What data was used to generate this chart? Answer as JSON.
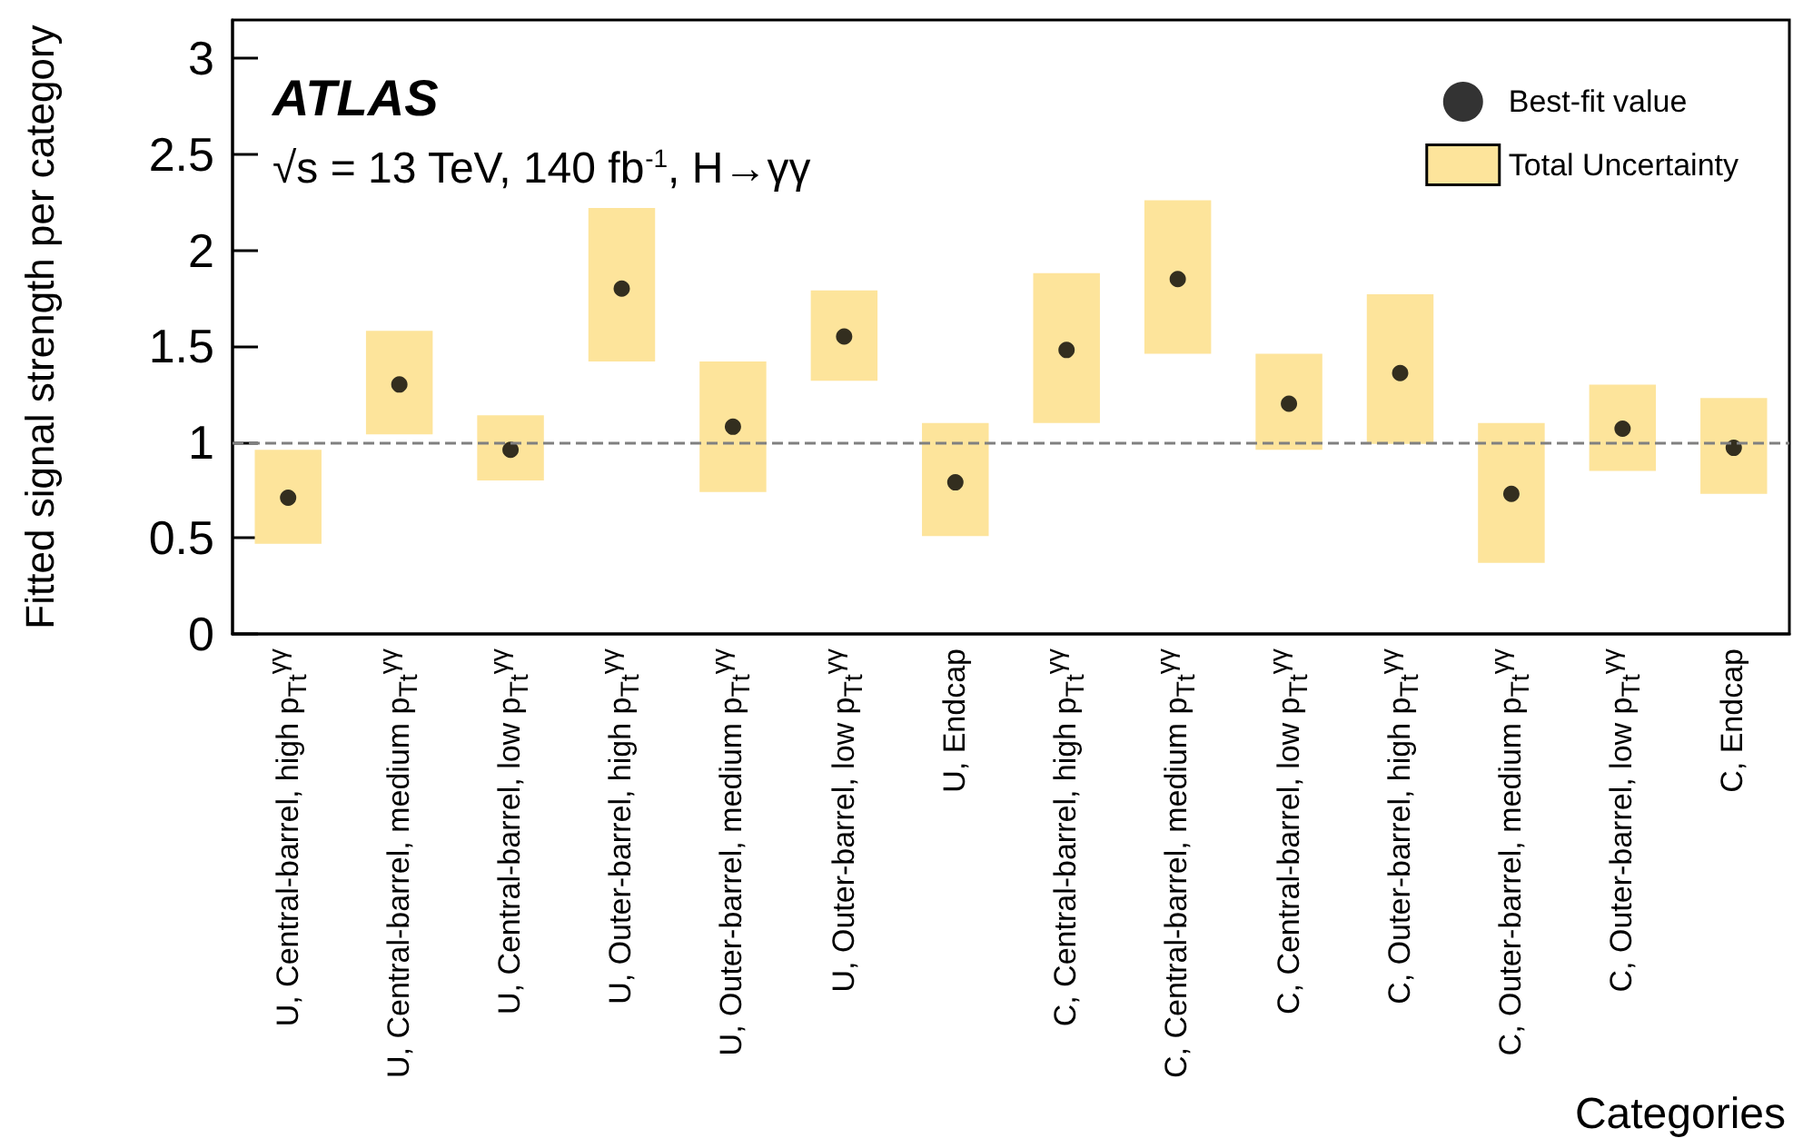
{
  "chart_data": {
    "type": "bar",
    "xlabel": "Categories",
    "ylabel": "Fitted signal strength per category",
    "annotations": [
      "ATLAS",
      "√s = 13 TeV, 140 fb$^{-1}$, H→γγ"
    ],
    "categories": [
      "U, Central-barrel, high p$_{Tt}$$^{γγ}$",
      "U, Central-barrel, medium p$_{Tt}$$^{γγ}$",
      "U, Central-barrel, low p$_{Tt}$$^{γγ}$",
      "U, Outer-barrel, high p$_{Tt}$$^{γγ}$",
      "U, Outer-barrel, medium p$_{Tt}$$^{γγ}$",
      "U, Outer-barrel, low p$_{Tt}$$^{γγ}$",
      "U, Endcap",
      "C, Central-barrel, high p$_{Tt}$$^{γγ}$",
      "C, Central-barrel, medium p$_{Tt}$$^{γγ}$",
      "C, Central-barrel, low p$_{Tt}$$^{γγ}$",
      "C, Outer-barrel, high p$_{Tt}$$^{γγ}$",
      "C, Outer-barrel, medium p$_{Tt}$$^{γγ}$",
      "C, Outer-barrel, low p$_{Tt}$$^{γγ}$",
      "C, Endcap"
    ],
    "series": [
      {
        "type": "scatter",
        "name": "Best-fit value",
        "color": "#000000",
        "x": [
          "U, Central-barrel, high p$_{Tt}$$^{γγ}$",
          "U, Central-barrel, medium p$_{Tt}$$^{γγ}$",
          "U, Central-barrel, low p$_{Tt}$$^{γγ}$",
          "U, Outer-barrel, high p$_{Tt}$$^{γγ}$",
          "U, Outer-barrel, medium p$_{Tt}$$^{γγ}$",
          "U, Outer-barrel, low p$_{Tt}$$^{γγ}$",
          "U, Endcap",
          "C, Central-barrel, high p$_{Tt}$$^{γγ}$",
          "C, Central-barrel, medium p$_{Tt}$$^{γγ}$",
          "C, Central-barrel, low p$_{Tt}$$^{γγ}$",
          "C, Outer-barrel, high p$_{Tt}$$^{γγ}$",
          "C, Outer-barrel, medium p$_{Tt}$$^{γγ}$",
          "C, Outer-barrel, low p$_{Tt}$$^{γγ}$",
          "C, Endcap"
        ],
        "values": [
          0.71,
          1.3,
          0.96,
          1.8,
          1.08,
          1.55,
          0.79,
          1.48,
          1.85,
          1.2,
          1.36,
          0.73,
          1.07,
          0.97
        ]
      },
      {
        "name": "Total Uncertainty",
        "color": "#fde49b",
        "base": [
          0.47,
          1.04,
          0.8,
          1.42,
          0.74,
          1.32,
          0.51,
          1.1,
          1.46,
          0.96,
          0.99,
          0.37,
          0.85,
          0.73
        ],
        "values": [
          0.49,
          0.54,
          0.34,
          0.8,
          0.68,
          0.47,
          0.59,
          0.78,
          0.8,
          0.5,
          0.78,
          0.73,
          0.45,
          0.5
        ]
      }
    ],
    "ylim": [
      0,
      3.2
    ],
    "yticks": [
      0,
      0.5,
      1,
      1.5,
      2,
      2.5,
      3
    ],
    "ref_lines": [
      {
        "axis": "y",
        "value": 1,
        "color": "#808080",
        "line_style": "dashed"
      }
    ],
    "marker": "circle",
    "legend": "top right",
    "grid": false
  }
}
